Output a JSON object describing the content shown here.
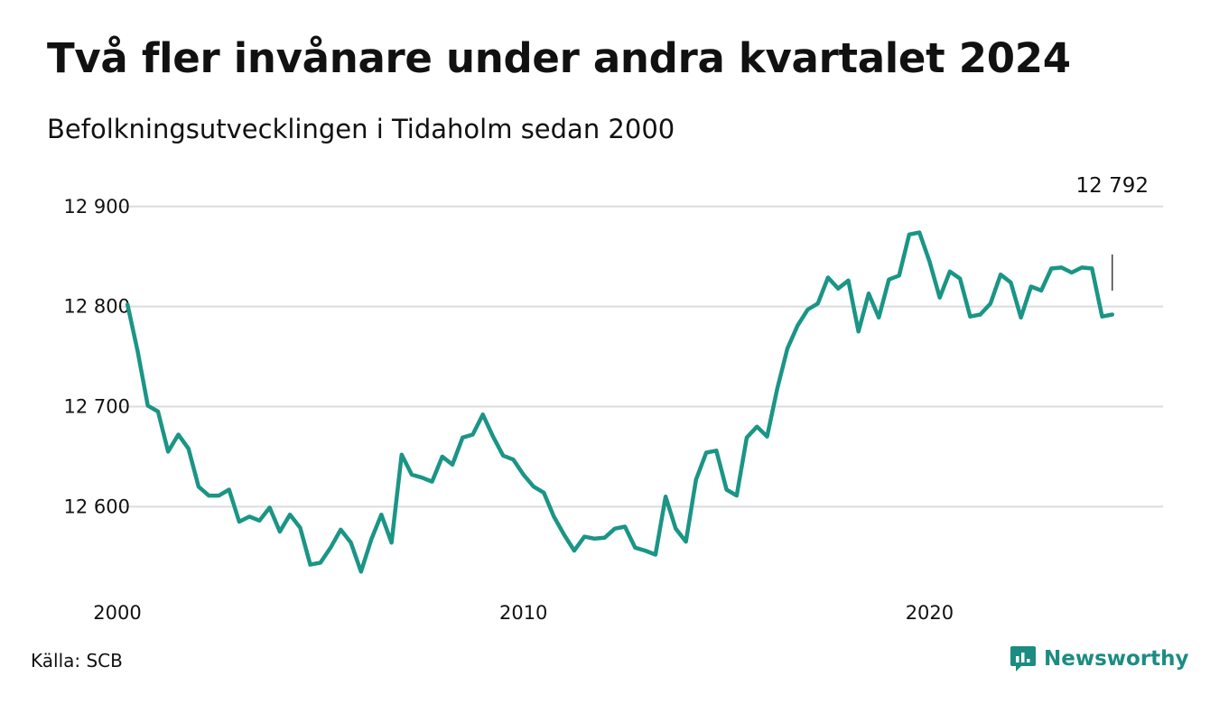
{
  "title": "Två fler invånare under andra kvartalet 2024",
  "subtitle": "Befolkningsutvecklingen i Tidaholm sedan 2000",
  "source": "Källa: SCB",
  "brand": {
    "name": "Newsworthy",
    "icon": "newsworthy-logo-icon",
    "color": "#1c8c82"
  },
  "chart_data": {
    "type": "line",
    "title": "Två fler invånare under andra kvartalet 2024",
    "subtitle": "Befolkningsutvecklingen i Tidaholm sedan 2000",
    "xlabel": "",
    "ylabel": "",
    "x_ticks": [
      {
        "value": 2000,
        "label": "2000"
      },
      {
        "value": 2010,
        "label": "2010"
      },
      {
        "value": 2020,
        "label": "2020"
      }
    ],
    "y_ticks": [
      {
        "value": 12600,
        "label": "12 600"
      },
      {
        "value": 12700,
        "label": "12 700"
      },
      {
        "value": 12800,
        "label": "12 800"
      },
      {
        "value": 12900,
        "label": "12 900"
      }
    ],
    "xlim": [
      2000,
      2025.75
    ],
    "ylim": [
      12520,
      12935
    ],
    "grid": true,
    "line_color": "#1a9586",
    "last_value_label": "12 792",
    "series": [
      {
        "x": [
          2000.25,
          2000.5,
          2000.75,
          2001.0,
          2001.25,
          2001.5,
          2001.75,
          2002.0,
          2002.25,
          2002.5,
          2002.75,
          2003.0,
          2003.25,
          2003.5,
          2003.75,
          2004.0,
          2004.25,
          2004.5,
          2004.75,
          2005.0,
          2005.25,
          2005.5,
          2005.75,
          2006.0,
          2006.25,
          2006.5,
          2006.75,
          2007.0,
          2007.25,
          2007.5,
          2007.75,
          2008.0,
          2008.25,
          2008.5,
          2008.75,
          2009.0,
          2009.25,
          2009.5,
          2009.75,
          2010.0,
          2010.25,
          2010.5,
          2010.75,
          2011.0,
          2011.25,
          2011.5,
          2011.75,
          2012.0,
          2012.25,
          2012.5,
          2012.75,
          2013.0,
          2013.25,
          2013.5,
          2013.75,
          2014.0,
          2014.25,
          2014.5,
          2014.75,
          2015.0,
          2015.25,
          2015.5,
          2015.75,
          2016.0,
          2016.25,
          2016.5,
          2016.75,
          2017.0,
          2017.25,
          2017.5,
          2017.75,
          2018.0,
          2018.25,
          2018.5,
          2018.75,
          2019.0,
          2019.25,
          2019.5,
          2019.75,
          2020.0,
          2020.25,
          2020.5,
          2020.75,
          2021.0,
          2021.25,
          2021.5,
          2021.75,
          2022.0,
          2022.25,
          2022.5,
          2022.75,
          2023.0,
          2023.25,
          2023.5,
          2023.75,
          2024.0,
          2024.25,
          2024.5
        ],
        "values": [
          12802,
          12755,
          12701,
          12695,
          12655,
          12672,
          12658,
          12620,
          12611,
          12611,
          12617,
          12585,
          12590,
          12586,
          12599,
          12575,
          12592,
          12579,
          12542,
          12544,
          12559,
          12577,
          12564,
          12535,
          12567,
          12592,
          12564,
          12652,
          12632,
          12629,
          12625,
          12650,
          12642,
          12669,
          12672,
          12692,
          12670,
          12651,
          12647,
          12632,
          12620,
          12614,
          12590,
          12572,
          12556,
          12570,
          12568,
          12569,
          12578,
          12580,
          12559,
          12556,
          12552,
          12610,
          12578,
          12565,
          12627,
          12654,
          12656,
          12617,
          12611,
          12669,
          12680,
          12670,
          12718,
          12758,
          12781,
          12797,
          12803,
          12829,
          12818,
          12826,
          12775,
          12813,
          12789,
          12827,
          12831,
          12872,
          12874,
          12845,
          12809,
          12835,
          12828,
          12790,
          12792,
          12803,
          12832,
          12824,
          12789,
          12820,
          12816,
          12838,
          12839,
          12834,
          12839,
          12838,
          12790,
          12792
        ]
      }
    ]
  }
}
